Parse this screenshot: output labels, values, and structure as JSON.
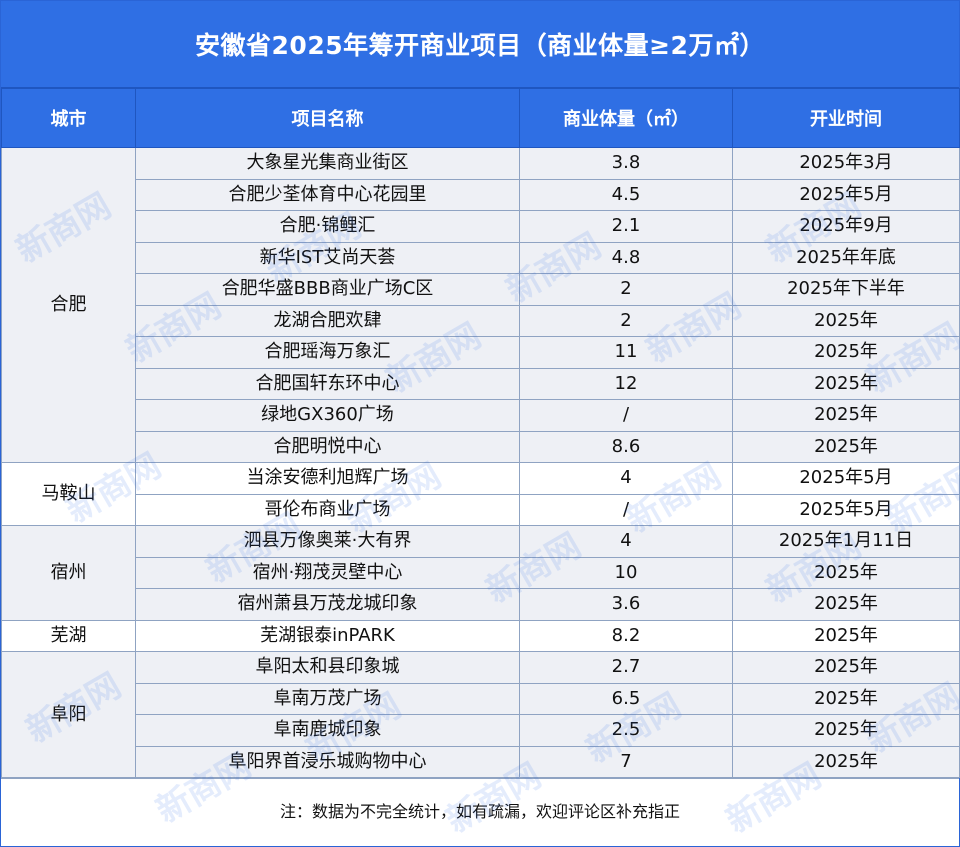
{
  "title": "安徽省2025年筹开商业项目（商业体量≥2万㎡）",
  "headers": [
    "城市",
    "项目名称",
    "商业体量（㎡）",
    "开业时间"
  ],
  "groups": [
    {
      "city": "合肥",
      "shade": "grey",
      "rows": [
        {
          "name": "大象星光集商业街区",
          "area": "3.8",
          "open": "2025年3月"
        },
        {
          "name": "合肥少荃体育中心花园里",
          "area": "4.5",
          "open": "2025年5月"
        },
        {
          "name": "合肥·锦鲤汇",
          "area": "2.1",
          "open": "2025年9月"
        },
        {
          "name": "新华IST艾尚天荟",
          "area": "4.8",
          "open": "2025年年底"
        },
        {
          "name": "合肥华盛BBB商业广场C区",
          "area": "2",
          "open": "2025年下半年"
        },
        {
          "name": "龙湖合肥欢肆",
          "area": "2",
          "open": "2025年"
        },
        {
          "name": "合肥瑶海万象汇",
          "area": "11",
          "open": "2025年"
        },
        {
          "name": "合肥国轩东环中心",
          "area": "12",
          "open": "2025年"
        },
        {
          "name": "绿地GX360广场",
          "area": "/",
          "open": "2025年"
        },
        {
          "name": "合肥明悦中心",
          "area": "8.6",
          "open": "2025年"
        }
      ]
    },
    {
      "city": "马鞍山",
      "shade": "white",
      "rows": [
        {
          "name": "当涂安德利旭辉广场",
          "area": "4",
          "open": "2025年5月"
        },
        {
          "name": "哥伦布商业广场",
          "area": "/",
          "open": "2025年5月"
        }
      ]
    },
    {
      "city": "宿州",
      "shade": "grey",
      "rows": [
        {
          "name": "泗县万像奥莱·大有界",
          "area": "4",
          "open": "2025年1月11日"
        },
        {
          "name": "宿州·翔茂灵壁中心",
          "area": "10",
          "open": "2025年"
        },
        {
          "name": "宿州萧县万茂龙城印象",
          "area": "3.6",
          "open": "2025年"
        }
      ]
    },
    {
      "city": "芜湖",
      "shade": "white",
      "rows": [
        {
          "name": "芜湖银泰inPARK",
          "area": "8.2",
          "open": "2025年"
        }
      ]
    },
    {
      "city": "阜阳",
      "shade": "grey",
      "rows": [
        {
          "name": "阜阳太和县印象城",
          "area": "2.7",
          "open": "2025年"
        },
        {
          "name": "阜南万茂广场",
          "area": "6.5",
          "open": "2025年"
        },
        {
          "name": "阜南鹿城印象",
          "area": "2.5",
          "open": "2025年"
        },
        {
          "name": "阜阳界首浸乐城购物中心",
          "area": "7",
          "open": "2025年"
        }
      ]
    }
  ],
  "note": "注：数据为不完全统计，如有疏漏，欢迎评论区补充指正",
  "watermark": "新商网"
}
